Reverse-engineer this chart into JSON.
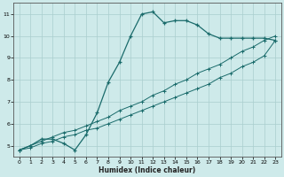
{
  "xlabel": "Humidex (Indice chaleur)",
  "bg_color": "#ceeaea",
  "grid_color": "#aacece",
  "line_color": "#1a6b6b",
  "xlim": [
    -0.5,
    23.5
  ],
  "ylim": [
    4.5,
    11.5
  ],
  "xticks": [
    0,
    1,
    2,
    3,
    4,
    5,
    6,
    7,
    8,
    9,
    10,
    11,
    12,
    13,
    14,
    15,
    16,
    17,
    18,
    19,
    20,
    21,
    22,
    23
  ],
  "yticks": [
    5,
    6,
    7,
    8,
    9,
    10,
    11
  ],
  "s1_x": [
    0,
    1,
    2,
    3,
    4,
    5,
    6,
    7,
    8,
    9,
    10,
    11,
    12,
    13,
    14,
    15,
    16,
    17,
    18,
    19,
    20,
    21,
    22,
    23
  ],
  "s1_y": [
    4.8,
    5.0,
    5.3,
    5.3,
    5.1,
    4.8,
    5.5,
    6.5,
    7.9,
    8.8,
    10.0,
    11.0,
    11.1,
    10.6,
    10.7,
    10.7,
    10.5,
    10.1,
    9.9,
    9.9,
    9.9,
    9.9,
    9.9,
    9.8
  ],
  "s2_x": [
    0,
    1,
    2,
    3,
    4,
    5,
    6,
    7,
    8,
    9,
    10,
    11,
    12,
    13,
    14,
    15,
    16,
    17,
    18,
    19,
    20,
    21,
    22,
    23
  ],
  "s2_y": [
    4.8,
    5.0,
    5.2,
    5.4,
    5.6,
    5.7,
    5.9,
    6.1,
    6.3,
    6.6,
    6.8,
    7.0,
    7.3,
    7.5,
    7.8,
    8.0,
    8.3,
    8.5,
    8.7,
    9.0,
    9.3,
    9.5,
    9.8,
    10.0
  ],
  "s3_x": [
    0,
    1,
    2,
    3,
    4,
    5,
    6,
    7,
    8,
    9,
    10,
    11,
    12,
    13,
    14,
    15,
    16,
    17,
    18,
    19,
    20,
    21,
    22,
    23
  ],
  "s3_y": [
    4.8,
    4.9,
    5.1,
    5.2,
    5.4,
    5.5,
    5.7,
    5.8,
    6.0,
    6.2,
    6.4,
    6.6,
    6.8,
    7.0,
    7.2,
    7.4,
    7.6,
    7.8,
    8.1,
    8.3,
    8.6,
    8.8,
    9.1,
    9.8
  ]
}
